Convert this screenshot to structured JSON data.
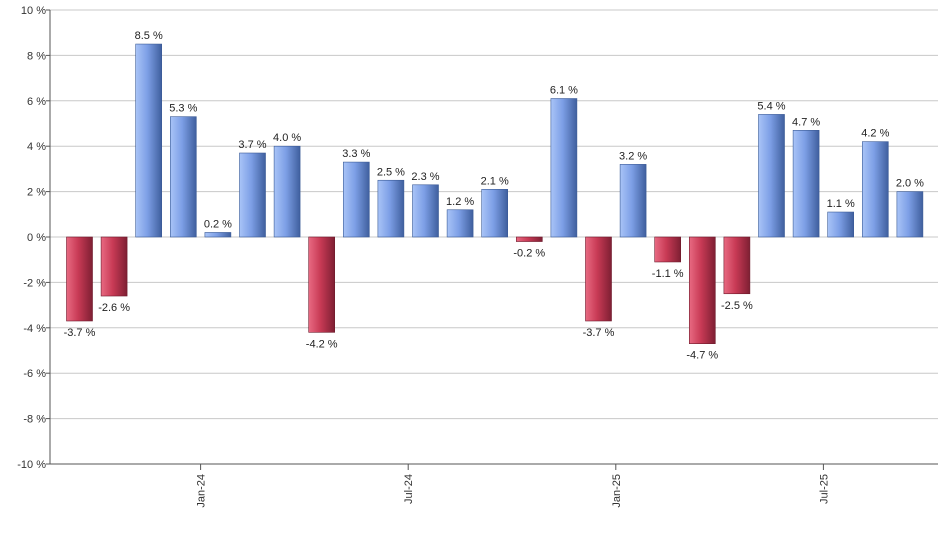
{
  "chart_data": {
    "type": "bar",
    "title": "",
    "xlabel": "",
    "ylabel": "",
    "ylim": [
      -10,
      10
    ],
    "yticks": [
      -10,
      -8,
      -6,
      -4,
      -2,
      0,
      2,
      4,
      6,
      8,
      10
    ],
    "ytick_labels": [
      "-10 %",
      "-8 %",
      "-6 %",
      "-4 %",
      "-2 %",
      "0 %",
      "2 %",
      "4 %",
      "6 %",
      "8 %",
      "10 %"
    ],
    "xtick_labels": [
      {
        "label": "Jan-24",
        "after_index": 3
      },
      {
        "label": "Jul-24",
        "after_index": 9
      },
      {
        "label": "Jan-25",
        "after_index": 15
      },
      {
        "label": "Jul-25",
        "after_index": 21
      }
    ],
    "grid": true,
    "positive_color": "#7d9fe6",
    "negative_color": "#c83a55",
    "bars": [
      {
        "value": -3.7,
        "label": "-3.7 %"
      },
      {
        "value": -2.6,
        "label": "-2.6 %"
      },
      {
        "value": 8.5,
        "label": "8.5 %"
      },
      {
        "value": 5.3,
        "label": "5.3 %"
      },
      {
        "value": 0.2,
        "label": "0.2 %"
      },
      {
        "value": 3.7,
        "label": "3.7 %"
      },
      {
        "value": 4.0,
        "label": "4.0 %"
      },
      {
        "value": -4.2,
        "label": "-4.2 %"
      },
      {
        "value": 3.3,
        "label": "3.3 %"
      },
      {
        "value": 2.5,
        "label": "2.5 %"
      },
      {
        "value": 2.3,
        "label": "2.3 %"
      },
      {
        "value": 1.2,
        "label": "1.2 %"
      },
      {
        "value": 2.1,
        "label": "2.1 %"
      },
      {
        "value": -0.2,
        "label": "-0.2 %"
      },
      {
        "value": 6.1,
        "label": "6.1 %"
      },
      {
        "value": -3.7,
        "label": "-3.7 %"
      },
      {
        "value": 3.2,
        "label": "3.2 %"
      },
      {
        "value": -1.1,
        "label": "-1.1 %"
      },
      {
        "value": -4.7,
        "label": "-4.7 %"
      },
      {
        "value": -2.5,
        "label": "-2.5 %"
      },
      {
        "value": 5.4,
        "label": "5.4 %"
      },
      {
        "value": 4.7,
        "label": "4.7 %"
      },
      {
        "value": 1.1,
        "label": "1.1 %"
      },
      {
        "value": 4.2,
        "label": "4.2 %"
      },
      {
        "value": 2.0,
        "label": "2.0 %"
      }
    ]
  }
}
